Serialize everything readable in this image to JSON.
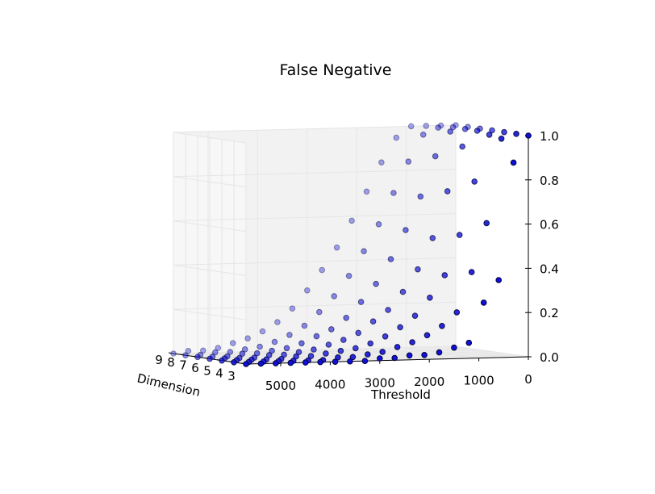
{
  "chart_data": {
    "type": "scatter",
    "projection": "3d",
    "title": "False Negative",
    "xlabel": "Threshold",
    "ylabel": "Dimension",
    "zlabel": "",
    "x_ticks": [
      0,
      1000,
      2000,
      3000,
      4000,
      5000
    ],
    "y_ticks": [
      3,
      4,
      5,
      6,
      7,
      8,
      9
    ],
    "z_ticks": [
      "0.0",
      "0.2",
      "0.4",
      "0.6",
      "0.8",
      "1.0"
    ],
    "xlim": [
      0,
      5700
    ],
    "ylim": [
      3,
      9
    ],
    "zlim": [
      0,
      1
    ],
    "grid": true,
    "marker_color": "#1010d8",
    "marker_edge": "#00003a",
    "x_values": [
      0,
      300,
      600,
      900,
      1200,
      1500,
      1800,
      2100,
      2400,
      2700,
      3000,
      3300,
      3600,
      3900,
      4200,
      4500,
      4800,
      5100,
      5400,
      5700
    ],
    "series": [
      {
        "dimension": 3,
        "values": [
          1.0,
          0.88,
          0.35,
          0.25,
          0.07,
          0.05,
          0.03,
          0.02,
          0.02,
          0.01,
          0.01,
          0.0,
          0.0,
          0.0,
          0.0,
          0.0,
          0.0,
          0.0,
          0.0,
          0.0
        ]
      },
      {
        "dimension": 4,
        "values": [
          1.0,
          0.98,
          0.6,
          0.38,
          0.2,
          0.14,
          0.1,
          0.07,
          0.05,
          0.03,
          0.02,
          0.01,
          0.01,
          0.0,
          0.0,
          0.0,
          0.0,
          0.0,
          0.0,
          0.0
        ]
      },
      {
        "dimension": 5,
        "values": [
          1.0,
          0.99,
          0.78,
          0.54,
          0.36,
          0.26,
          0.18,
          0.13,
          0.09,
          0.06,
          0.04,
          0.03,
          0.02,
          0.01,
          0.01,
          0.0,
          0.0,
          0.0,
          0.0,
          0.0
        ]
      },
      {
        "dimension": 6,
        "values": [
          1.0,
          1.0,
          0.93,
          0.73,
          0.52,
          0.38,
          0.28,
          0.2,
          0.15,
          0.1,
          0.07,
          0.05,
          0.03,
          0.02,
          0.01,
          0.01,
          0.0,
          0.0,
          0.0,
          0.0
        ]
      },
      {
        "dimension": 7,
        "values": [
          1.0,
          1.0,
          0.99,
          0.88,
          0.7,
          0.55,
          0.42,
          0.31,
          0.23,
          0.16,
          0.11,
          0.08,
          0.05,
          0.03,
          0.02,
          0.01,
          0.01,
          0.0,
          0.0,
          0.0
        ]
      },
      {
        "dimension": 8,
        "values": [
          1.0,
          1.0,
          1.0,
          0.97,
          0.85,
          0.71,
          0.57,
          0.45,
          0.34,
          0.25,
          0.18,
          0.12,
          0.08,
          0.05,
          0.03,
          0.02,
          0.01,
          0.01,
          0.0,
          0.0
        ]
      },
      {
        "dimension": 9,
        "values": [
          1.0,
          1.0,
          1.0,
          1.0,
          0.95,
          0.84,
          0.71,
          0.58,
          0.46,
          0.36,
          0.27,
          0.19,
          0.13,
          0.09,
          0.06,
          0.04,
          0.02,
          0.01,
          0.01,
          0.0
        ]
      }
    ]
  }
}
